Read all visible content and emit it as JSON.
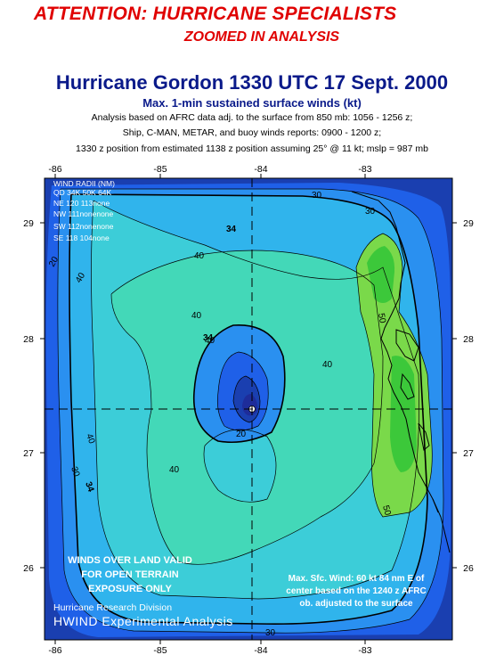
{
  "header": {
    "attention": "ATTENTION: HURRICANE SPECIALISTS",
    "zoomed": "ZOOMED IN ANALYSIS"
  },
  "title": "Hurricane Gordon 1330 UTC 17 Sept. 2000",
  "subtitle": "Max. 1-min sustained surface winds (kt)",
  "info": {
    "line1": "Analysis based on AFRC data adj. to the surface from 850 mb:  1056 - 1256 z;",
    "line2": "Ship, C-MAN, METAR, and buoy winds reports: 0900 - 1200 z;",
    "line3": "1330 z position from estimated 1138 z position assuming 25° @ 11 kt; mslp = 987 mb"
  },
  "axes": {
    "lon_ticks": [
      "-86",
      "-85",
      "-84",
      "-83"
    ],
    "lat_ticks": [
      "29",
      "28",
      "27",
      "26"
    ]
  },
  "wind_radii": {
    "title": "WIND RADII (NM)",
    "header": "QD 34K 50K 64K",
    "rows": [
      "NE 120 113none",
      "NW 111nonenone",
      "SW 112nonenone",
      "SE 118 104none"
    ]
  },
  "contour_labels": [
    "30",
    "34",
    "40",
    "40",
    "20",
    "40",
    "20",
    "40",
    "30",
    "34",
    "40",
    "30",
    "40",
    "40",
    "50",
    "50",
    "30",
    "34"
  ],
  "land_note": {
    "l1": "WINDS OVER LAND VALID",
    "l2": "FOR OPEN TERRAIN",
    "l3": "EXPOSURE ONLY"
  },
  "max_wind_note": {
    "l1": "Max. Sfc. Wind: 60 kt 84 nm E of",
    "l2": "center based on the 1240 z AFRC",
    "l3": "ob. adjusted to the surface"
  },
  "credit": {
    "division": "Hurricane Research Division",
    "product": "HWIND Experimental Analysis"
  },
  "colors": {
    "ocean_20": "#1f60e8",
    "ocean_30": "#2a90f0",
    "ocean_34": "#30b4ec",
    "ocean_40": "#3ccdd8",
    "ocean_45": "#43d8b8",
    "land_50": "#7ad94a",
    "land_60": "#3cc83a",
    "outer": "#1a3fb0",
    "center": "#1e2c9a"
  }
}
